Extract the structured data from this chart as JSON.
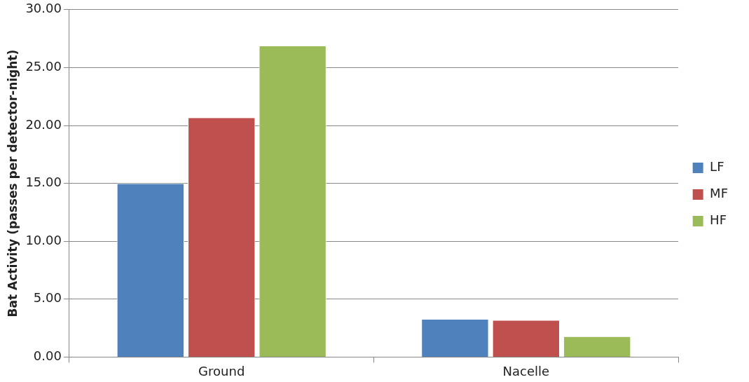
{
  "chart_data": {
    "type": "bar",
    "ylabel": "Bat Activity (passes per detector-night)",
    "categories": [
      "Ground",
      "Nacelle"
    ],
    "series": [
      {
        "name": "LF",
        "color": "#4f81bd",
        "values": [
          15.0,
          3.3
        ]
      },
      {
        "name": "MF",
        "color": "#c0504d",
        "values": [
          20.7,
          3.2
        ]
      },
      {
        "name": "HF",
        "color": "#9bbb59",
        "values": [
          26.9,
          1.8
        ]
      }
    ],
    "ylim": [
      0,
      30
    ],
    "yticks": [
      {
        "value": 0,
        "label": "0.00"
      },
      {
        "value": 5,
        "label": "5.00"
      },
      {
        "value": 10,
        "label": "10.00"
      },
      {
        "value": 15,
        "label": "15.00"
      },
      {
        "value": 20,
        "label": "20.00"
      },
      {
        "value": 25,
        "label": "25.00"
      },
      {
        "value": 30,
        "label": "30.00"
      }
    ],
    "grid": "y",
    "legend": "right"
  }
}
